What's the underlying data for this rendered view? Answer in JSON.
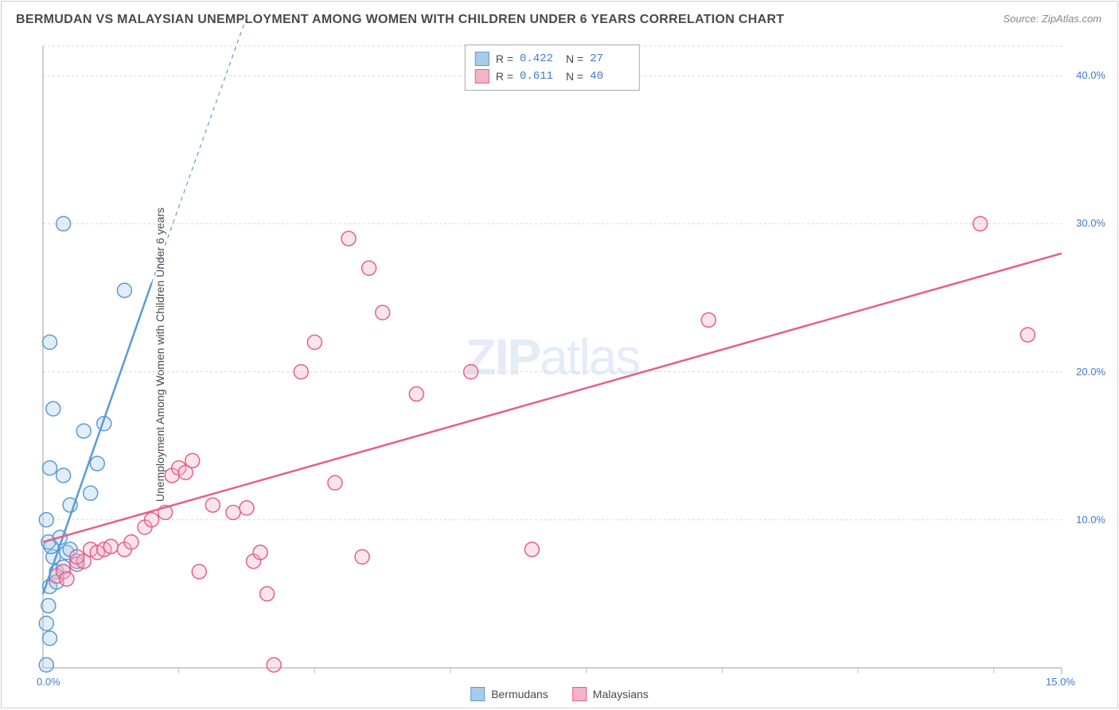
{
  "title": "BERMUDAN VS MALAYSIAN UNEMPLOYMENT AMONG WOMEN WITH CHILDREN UNDER 6 YEARS CORRELATION CHART",
  "source": "Source: ZipAtlas.com",
  "y_axis_label": "Unemployment Among Women with Children Under 6 years",
  "watermark_a": "ZIP",
  "watermark_b": "atlas",
  "chart": {
    "type": "scatter",
    "xlim": [
      0,
      15
    ],
    "ylim": [
      0,
      42
    ],
    "x_ticks": [
      "0.0%",
      "15.0%"
    ],
    "x_tick_positions": [
      0,
      15
    ],
    "x_minor_ticks": [
      2,
      4,
      6,
      8,
      10,
      12,
      14
    ],
    "y_ticks": [
      "10.0%",
      "20.0%",
      "30.0%",
      "40.0%"
    ],
    "y_tick_positions": [
      10,
      20,
      30,
      40
    ],
    "grid_color": "#d8d8d8",
    "axis_color": "#bfbfbf",
    "tick_label_color": "#3d7cc9",
    "background_color": "#ffffff",
    "marker_radius": 9,
    "marker_stroke_width": 1.5,
    "marker_fill_opacity": 0.35,
    "regression_line_width": 2.5
  },
  "series": [
    {
      "name": "Bermudans",
      "color_stroke": "#5a9bd5",
      "color_fill": "#a9cbeb",
      "r_value": "0.422",
      "n_value": "27",
      "regression": {
        "x1": 0,
        "y1": 5,
        "x2": 1.6,
        "y2": 26,
        "dashed_x2": 3.0,
        "dashed_y2": 44
      },
      "points": [
        [
          0.05,
          0.2
        ],
        [
          0.1,
          2.0
        ],
        [
          0.05,
          3.0
        ],
        [
          0.08,
          4.2
        ],
        [
          0.1,
          5.5
        ],
        [
          0.2,
          6.5
        ],
        [
          0.3,
          6.8
        ],
        [
          0.15,
          7.5
        ],
        [
          0.35,
          7.8
        ],
        [
          0.12,
          8.2
        ],
        [
          0.08,
          8.5
        ],
        [
          0.05,
          10.0
        ],
        [
          0.4,
          11.0
        ],
        [
          0.7,
          11.8
        ],
        [
          0.3,
          13.0
        ],
        [
          0.1,
          13.5
        ],
        [
          0.8,
          13.8
        ],
        [
          0.6,
          16.0
        ],
        [
          0.9,
          16.5
        ],
        [
          0.15,
          17.5
        ],
        [
          0.1,
          22.0
        ],
        [
          1.2,
          25.5
        ],
        [
          0.3,
          30.0
        ],
        [
          0.4,
          8.0
        ],
        [
          0.2,
          5.8
        ],
        [
          0.5,
          7.2
        ],
        [
          0.25,
          8.8
        ]
      ]
    },
    {
      "name": "Malaysians",
      "color_stroke": "#e75f87",
      "color_fill": "#f4b4c7",
      "r_value": "0.611",
      "n_value": "40",
      "regression": {
        "x1": 0,
        "y1": 8.5,
        "x2": 15,
        "y2": 28
      },
      "points": [
        [
          0.2,
          6.2
        ],
        [
          0.3,
          6.5
        ],
        [
          0.35,
          6.0
        ],
        [
          0.5,
          7.0
        ],
        [
          0.6,
          7.2
        ],
        [
          0.5,
          7.5
        ],
        [
          0.7,
          8.0
        ],
        [
          0.8,
          7.8
        ],
        [
          0.9,
          8.0
        ],
        [
          1.0,
          8.2
        ],
        [
          1.2,
          8.0
        ],
        [
          1.3,
          8.5
        ],
        [
          1.5,
          9.5
        ],
        [
          1.6,
          10.0
        ],
        [
          1.8,
          10.5
        ],
        [
          1.9,
          13.0
        ],
        [
          2.0,
          13.5
        ],
        [
          2.1,
          13.2
        ],
        [
          2.2,
          14.0
        ],
        [
          2.3,
          6.5
        ],
        [
          2.5,
          11.0
        ],
        [
          2.8,
          10.5
        ],
        [
          3.0,
          10.8
        ],
        [
          3.1,
          7.2
        ],
        [
          3.2,
          7.8
        ],
        [
          3.3,
          5.0
        ],
        [
          3.4,
          0.2
        ],
        [
          3.8,
          20.0
        ],
        [
          4.0,
          22.0
        ],
        [
          4.3,
          12.5
        ],
        [
          4.5,
          29.0
        ],
        [
          4.7,
          7.5
        ],
        [
          4.8,
          27.0
        ],
        [
          5.0,
          24.0
        ],
        [
          5.5,
          18.5
        ],
        [
          6.3,
          20.0
        ],
        [
          7.2,
          8.0
        ],
        [
          9.8,
          23.5
        ],
        [
          13.8,
          30.0
        ],
        [
          14.5,
          22.5
        ]
      ]
    }
  ],
  "legend": {
    "series1_label": "Bermudans",
    "series2_label": "Malaysians"
  },
  "stats_box": {
    "r_label": "R =",
    "n_label": "N ="
  }
}
